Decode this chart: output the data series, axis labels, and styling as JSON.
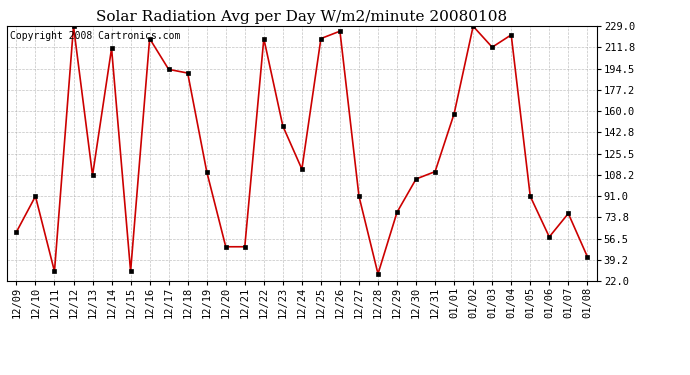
{
  "title": "Solar Radiation Avg per Day W/m2/minute 20080108",
  "copyright": "Copyright 2008 Cartronics.com",
  "dates": [
    "12/09",
    "12/10",
    "12/11",
    "12/12",
    "12/13",
    "12/14",
    "12/15",
    "12/16",
    "12/17",
    "12/18",
    "12/19",
    "12/20",
    "12/21",
    "12/22",
    "12/23",
    "12/24",
    "12/25",
    "12/26",
    "12/27",
    "12/28",
    "12/29",
    "12/30",
    "12/31",
    "01/01",
    "01/02",
    "01/03",
    "01/04",
    "01/05",
    "01/06",
    "01/07",
    "01/08"
  ],
  "values": [
    62,
    91,
    30,
    229,
    108,
    211,
    30,
    219,
    194,
    191,
    111,
    50,
    50,
    219,
    148,
    113,
    219,
    225,
    91,
    28,
    78,
    105,
    111,
    158,
    229,
    212,
    222,
    91,
    58,
    77,
    42
  ],
  "line_color": "#cc0000",
  "marker_color": "#000000",
  "bg_color": "#ffffff",
  "plot_bg_color": "#ffffff",
  "grid_color": "#aaaaaa",
  "yticks": [
    22.0,
    39.2,
    56.5,
    73.8,
    91.0,
    108.2,
    125.5,
    142.8,
    160.0,
    177.2,
    194.5,
    211.8,
    229.0
  ],
  "ylim_min": 22.0,
  "ylim_max": 229.0,
  "title_fontsize": 11,
  "copyright_fontsize": 7,
  "tick_fontsize": 7.5
}
